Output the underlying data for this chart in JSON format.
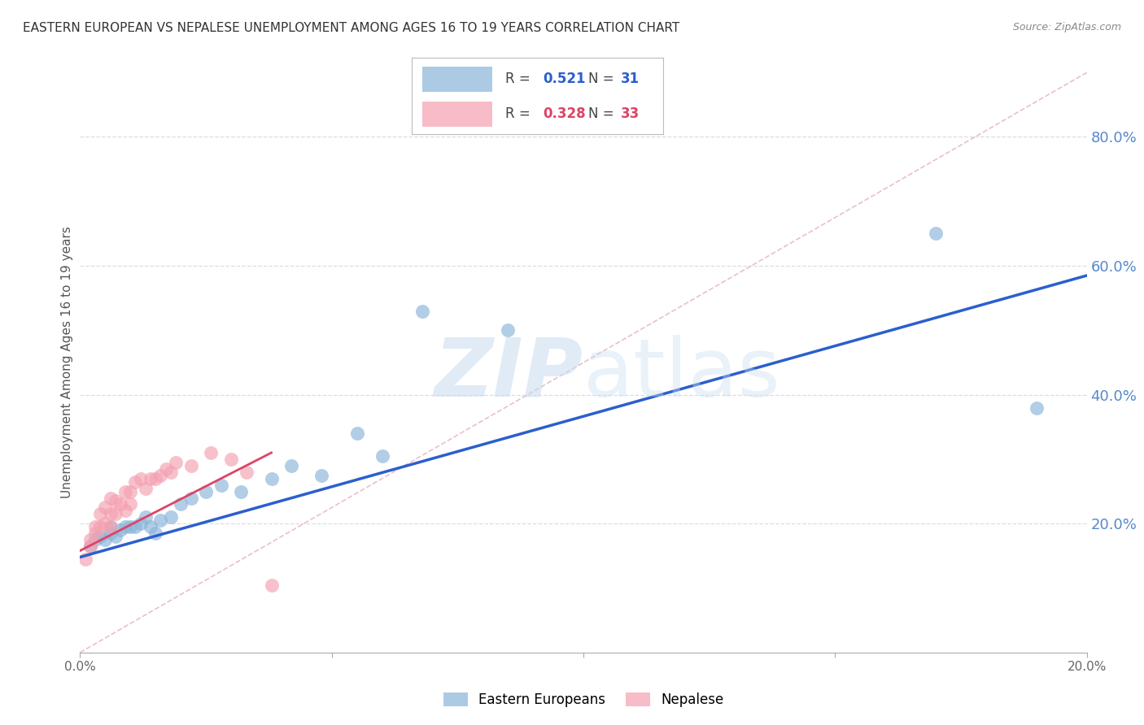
{
  "title": "EASTERN EUROPEAN VS NEPALESE UNEMPLOYMENT AMONG AGES 16 TO 19 YEARS CORRELATION CHART",
  "source": "Source: ZipAtlas.com",
  "ylabel": "Unemployment Among Ages 16 to 19 years",
  "xlim": [
    0.0,
    0.2
  ],
  "ylim": [
    0.0,
    0.9
  ],
  "xticks": [
    0.0,
    0.05,
    0.1,
    0.15,
    0.2
  ],
  "xtick_labels": [
    "0.0%",
    "",
    "",
    "",
    "20.0%"
  ],
  "yticks_right": [
    0.2,
    0.4,
    0.6,
    0.8
  ],
  "blue_R": 0.521,
  "blue_N": 31,
  "pink_R": 0.328,
  "pink_N": 33,
  "blue_color": "#89B4D9",
  "pink_color": "#F4A0B0",
  "blue_line_color": "#2B5FCC",
  "pink_line_color": "#DD4466",
  "diag_color": "#E8B8C8",
  "watermark_color": "#C8DCF0",
  "grid_color": "#DDDDDD",
  "right_tick_color": "#5588CC",
  "blue_x": [
    0.002,
    0.003,
    0.004,
    0.005,
    0.006,
    0.006,
    0.007,
    0.008,
    0.009,
    0.01,
    0.011,
    0.012,
    0.013,
    0.014,
    0.015,
    0.016,
    0.018,
    0.02,
    0.022,
    0.025,
    0.028,
    0.032,
    0.038,
    0.042,
    0.048,
    0.055,
    0.06,
    0.068,
    0.085,
    0.17,
    0.19
  ],
  "blue_y": [
    0.165,
    0.175,
    0.18,
    0.175,
    0.185,
    0.195,
    0.18,
    0.19,
    0.195,
    0.195,
    0.195,
    0.2,
    0.21,
    0.195,
    0.185,
    0.205,
    0.21,
    0.23,
    0.24,
    0.25,
    0.26,
    0.25,
    0.27,
    0.29,
    0.275,
    0.34,
    0.305,
    0.53,
    0.5,
    0.65,
    0.38
  ],
  "pink_x": [
    0.001,
    0.002,
    0.002,
    0.003,
    0.003,
    0.004,
    0.004,
    0.005,
    0.005,
    0.006,
    0.006,
    0.006,
    0.007,
    0.007,
    0.008,
    0.009,
    0.009,
    0.01,
    0.01,
    0.011,
    0.012,
    0.013,
    0.014,
    0.015,
    0.016,
    0.017,
    0.018,
    0.019,
    0.022,
    0.026,
    0.03,
    0.033,
    0.038
  ],
  "pink_y": [
    0.145,
    0.165,
    0.175,
    0.185,
    0.195,
    0.195,
    0.215,
    0.2,
    0.225,
    0.195,
    0.215,
    0.24,
    0.215,
    0.235,
    0.23,
    0.22,
    0.25,
    0.23,
    0.25,
    0.265,
    0.27,
    0.255,
    0.27,
    0.27,
    0.275,
    0.285,
    0.28,
    0.295,
    0.29,
    0.31,
    0.3,
    0.28,
    0.105
  ],
  "blue_line_x": [
    0.0,
    0.2
  ],
  "blue_line_y": [
    0.148,
    0.585
  ],
  "pink_line_x": [
    0.0,
    0.038
  ],
  "pink_line_y": [
    0.158,
    0.31
  ],
  "diag_line_x": [
    0.0,
    0.2
  ],
  "diag_line_y": [
    0.0,
    0.9
  ]
}
